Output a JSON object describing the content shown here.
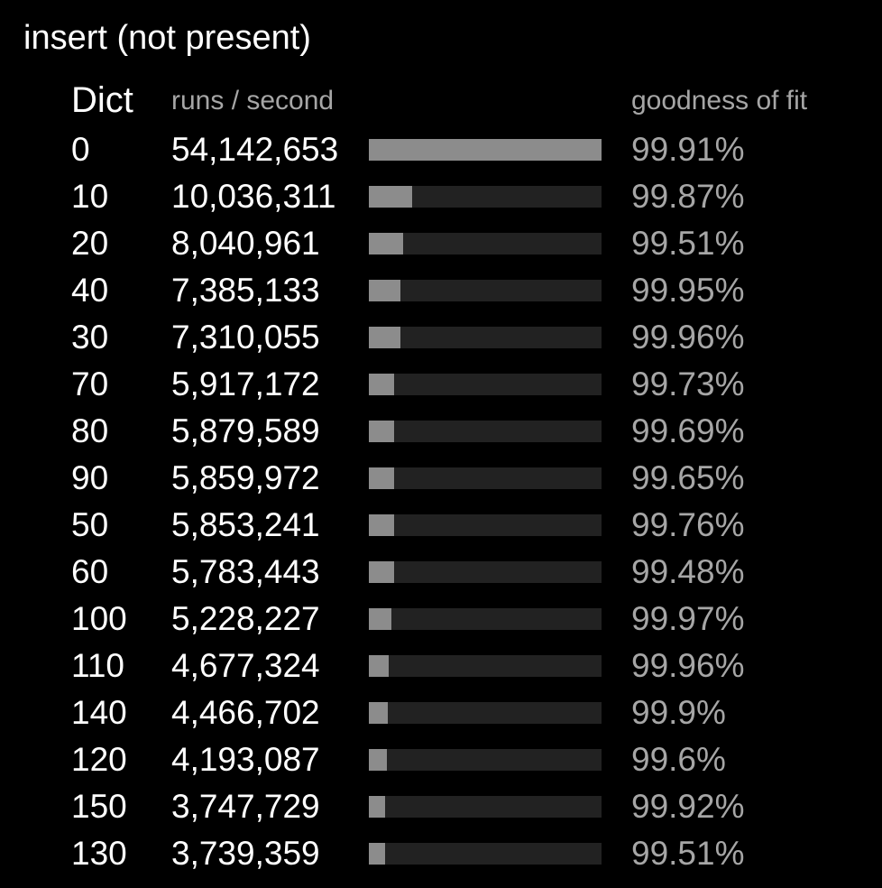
{
  "chart_data": {
    "type": "bar",
    "title": "insert (not present)",
    "columns": {
      "category": "Dict",
      "value": "runs / second",
      "fit": "goodness of fit"
    },
    "categories": [
      "0",
      "10",
      "20",
      "40",
      "30",
      "70",
      "80",
      "90",
      "50",
      "60",
      "100",
      "110",
      "140",
      "120",
      "150",
      "130"
    ],
    "values": [
      54142653,
      10036311,
      8040961,
      7385133,
      7310055,
      5917172,
      5879589,
      5859972,
      5853241,
      5783443,
      5228227,
      4677324,
      4466702,
      4193087,
      3747729,
      3739359
    ],
    "value_labels": [
      "54,142,653",
      "10,036,311",
      "8,040,961",
      "7,385,133",
      "7,310,055",
      "5,917,172",
      "5,879,589",
      "5,859,972",
      "5,853,241",
      "5,783,443",
      "5,228,227",
      "4,677,324",
      "4,466,702",
      "4,193,087",
      "3,747,729",
      "3,739,359"
    ],
    "goodness_of_fit": [
      "99.91%",
      "99.87%",
      "99.51%",
      "99.95%",
      "99.96%",
      "99.73%",
      "99.69%",
      "99.65%",
      "99.76%",
      "99.48%",
      "99.97%",
      "99.96%",
      "99.9%",
      "99.6%",
      "99.92%",
      "99.51%"
    ],
    "xlim": [
      0,
      54142653
    ],
    "grid": false,
    "legend": "none",
    "colors": {
      "background": "#000000",
      "bar_fill": "#8c8c8c",
      "bar_track": "#222222",
      "primary_text": "#ffffff",
      "secondary_text": "#a6a6a6"
    }
  }
}
